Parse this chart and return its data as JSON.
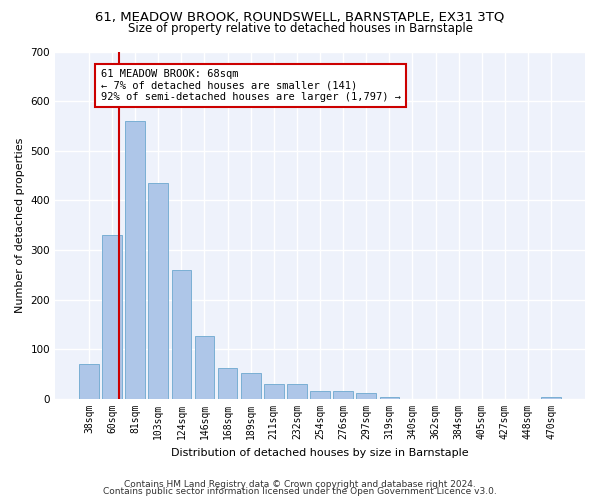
{
  "title": "61, MEADOW BROOK, ROUNDSWELL, BARNSTAPLE, EX31 3TQ",
  "subtitle": "Size of property relative to detached houses in Barnstaple",
  "xlabel": "Distribution of detached houses by size in Barnstaple",
  "ylabel": "Number of detached properties",
  "categories": [
    "38sqm",
    "60sqm",
    "81sqm",
    "103sqm",
    "124sqm",
    "146sqm",
    "168sqm",
    "189sqm",
    "211sqm",
    "232sqm",
    "254sqm",
    "276sqm",
    "297sqm",
    "319sqm",
    "340sqm",
    "362sqm",
    "384sqm",
    "405sqm",
    "427sqm",
    "448sqm",
    "470sqm"
  ],
  "values": [
    70,
    330,
    560,
    435,
    260,
    128,
    63,
    53,
    30,
    30,
    17,
    17,
    12,
    5,
    0,
    0,
    0,
    0,
    0,
    0,
    5
  ],
  "bar_color": "#aec6e8",
  "bar_edge_color": "#7aafd4",
  "background_color": "#eef2fb",
  "grid_color": "#ffffff",
  "red_line_x": 1.3,
  "annotation_box_text": "61 MEADOW BROOK: 68sqm\n← 7% of detached houses are smaller (141)\n92% of semi-detached houses are larger (1,797) →",
  "annotation_box_color": "#cc0000",
  "ylim": [
    0,
    700
  ],
  "yticks": [
    0,
    100,
    200,
    300,
    400,
    500,
    600,
    700
  ],
  "footer_line1": "Contains HM Land Registry data © Crown copyright and database right 2024.",
  "footer_line2": "Contains public sector information licensed under the Open Government Licence v3.0.",
  "title_fontsize": 9.5,
  "subtitle_fontsize": 8.5,
  "xlabel_fontsize": 8,
  "ylabel_fontsize": 8,
  "tick_fontsize": 7,
  "ytick_fontsize": 7.5,
  "footer_fontsize": 6.5,
  "annotation_fontsize": 7.5
}
